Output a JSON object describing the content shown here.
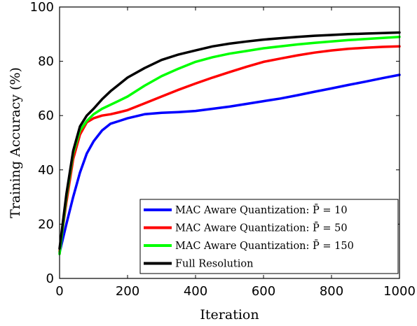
{
  "chart_data": {
    "type": "line",
    "title": "",
    "xlabel": "Iteration",
    "ylabel": "Training Accuracy (%)",
    "xlim": [
      0,
      1000
    ],
    "ylim": [
      0,
      100
    ],
    "xticks": [
      "0",
      "200",
      "400",
      "600",
      "800",
      "1000"
    ],
    "yticks": [
      "0",
      "20",
      "40",
      "60",
      "80",
      "100"
    ],
    "grid": false,
    "legend_position": "bottom-right",
    "series": [
      {
        "name": "MAC Aware Quantization: P̄ = 10",
        "color": "#0000ff",
        "x": [
          0,
          20,
          40,
          60,
          80,
          100,
          125,
          150,
          175,
          200,
          250,
          300,
          350,
          400,
          450,
          500,
          550,
          600,
          650,
          700,
          750,
          800,
          850,
          900,
          950,
          1000
        ],
        "y": [
          9.5,
          20,
          30,
          39,
          46,
          50.5,
          54.5,
          57,
          58,
          59,
          60.5,
          61,
          61.3,
          61.7,
          62.5,
          63.3,
          64.3,
          65.3,
          66.3,
          67.5,
          68.8,
          70,
          71.3,
          72.5,
          73.8,
          75
        ]
      },
      {
        "name": "MAC Aware Quantization: P̄ = 50",
        "color": "#ff0000",
        "x": [
          0,
          20,
          40,
          60,
          80,
          100,
          125,
          150,
          175,
          200,
          250,
          300,
          350,
          400,
          450,
          500,
          550,
          600,
          650,
          700,
          750,
          800,
          850,
          900,
          950,
          1000
        ],
        "y": [
          10,
          28,
          44,
          53,
          57.5,
          59,
          60,
          60.5,
          61.2,
          62,
          64.5,
          67,
          69.5,
          71.8,
          74,
          76,
          78,
          79.8,
          81,
          82.2,
          83.2,
          84,
          84.6,
          85,
          85.3,
          85.5
        ]
      },
      {
        "name": "MAC Aware Quantization: P̄ = 150",
        "color": "#00ff00",
        "x": [
          0,
          20,
          40,
          60,
          80,
          100,
          125,
          150,
          175,
          200,
          250,
          300,
          350,
          400,
          450,
          500,
          550,
          600,
          650,
          700,
          750,
          800,
          850,
          900,
          950,
          1000
        ],
        "y": [
          9,
          30,
          46,
          54.5,
          58,
          60.5,
          62.5,
          64,
          65.5,
          67,
          71,
          74.5,
          77.3,
          79.8,
          81.5,
          82.8,
          83.8,
          84.8,
          85.5,
          86.2,
          86.8,
          87.3,
          87.8,
          88.2,
          88.6,
          89
        ]
      },
      {
        "name": "Full Resolution",
        "color": "#000000",
        "x": [
          0,
          20,
          40,
          60,
          80,
          100,
          125,
          150,
          175,
          200,
          250,
          300,
          350,
          400,
          450,
          500,
          550,
          600,
          650,
          700,
          750,
          800,
          850,
          900,
          950,
          1000
        ],
        "y": [
          11,
          31,
          47,
          56,
          60,
          62.5,
          66,
          69,
          71.5,
          74,
          77.5,
          80.5,
          82.5,
          84,
          85.5,
          86.5,
          87.3,
          88,
          88.5,
          89,
          89.4,
          89.7,
          90,
          90.2,
          90.4,
          90.6
        ]
      }
    ]
  }
}
